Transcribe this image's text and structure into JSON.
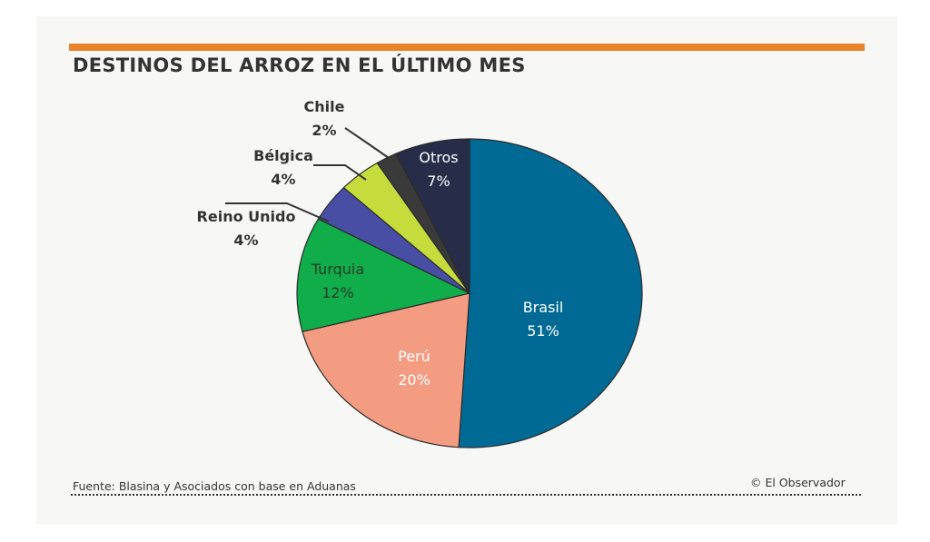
{
  "chart_data": {
    "type": "pie",
    "title": "DESTINOS DEL ARROZ EN EL ÚLTIMO MES",
    "slices": [
      {
        "label": "Brasil",
        "value": 51,
        "value_label": "51%",
        "color": "#006a94",
        "text_color": "#ffffff",
        "placement": "inside"
      },
      {
        "label": "Perú",
        "value": 20,
        "value_label": "20%",
        "color": "#f49c82",
        "text_color": "#ffffff",
        "placement": "inside"
      },
      {
        "label": "Turquia",
        "value": 12,
        "value_label": "12%",
        "color": "#10ad4a",
        "text_color": "#1f3a2a",
        "placement": "inside"
      },
      {
        "label": "Reino Unido",
        "value": 4,
        "value_label": "4%",
        "color": "#474ea3",
        "text_color": "#333333",
        "placement": "outside"
      },
      {
        "label": "Bélgica",
        "value": 4,
        "value_label": "4%",
        "color": "#c6db3c",
        "text_color": "#333333",
        "placement": "outside"
      },
      {
        "label": "Chile",
        "value": 2,
        "value_label": "2%",
        "color": "#3b3a3a",
        "text_color": "#333333",
        "placement": "outside"
      },
      {
        "label": "Otros",
        "value": 7,
        "value_label": "7%",
        "color": "#272d48",
        "text_color": "#ffffff",
        "placement": "inside"
      }
    ],
    "start_angle": "12 o'clock",
    "direction": "clockwise",
    "legend": "none"
  },
  "footer": {
    "source": "Fuente: Blasina y Asociados con base en Aduanas",
    "credit": "© El Observador"
  },
  "colors": {
    "accent": "#e9832a"
  }
}
